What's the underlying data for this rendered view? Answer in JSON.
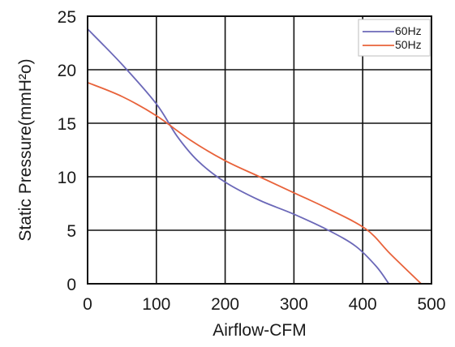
{
  "chart_data": {
    "type": "line",
    "xlabel": "Airflow-CFM",
    "ylabel": "Static Pressure(mmH²o)",
    "xlim": [
      0,
      500
    ],
    "ylim": [
      0,
      25
    ],
    "xticks": [
      "0",
      "100",
      "200",
      "300",
      "400",
      "500"
    ],
    "yticks": [
      "0",
      "5",
      "10",
      "15",
      "20",
      "25"
    ],
    "grid": true,
    "legend_position": "top-right",
    "series": [
      {
        "name": "60Hz",
        "color": "#6b68b8",
        "points": [
          [
            0,
            23.8
          ],
          [
            50,
            20.5
          ],
          [
            100,
            16.8
          ],
          [
            130,
            13.8
          ],
          [
            160,
            11.5
          ],
          [
            200,
            9.5
          ],
          [
            250,
            7.8
          ],
          [
            300,
            6.5
          ],
          [
            350,
            5.0
          ],
          [
            390,
            3.5
          ],
          [
            420,
            1.6
          ],
          [
            438,
            0
          ]
        ]
      },
      {
        "name": "50Hz",
        "color": "#e8623a",
        "points": [
          [
            0,
            18.8
          ],
          [
            50,
            17.5
          ],
          [
            100,
            15.7
          ],
          [
            150,
            13.4
          ],
          [
            200,
            11.5
          ],
          [
            250,
            10.0
          ],
          [
            300,
            8.5
          ],
          [
            350,
            7.0
          ],
          [
            405,
            5.1
          ],
          [
            440,
            2.8
          ],
          [
            485,
            0
          ]
        ]
      }
    ]
  }
}
